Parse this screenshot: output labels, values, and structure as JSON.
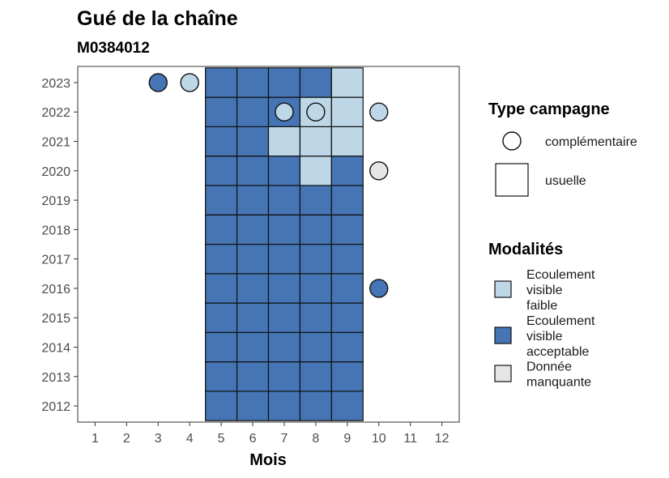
{
  "chart_data": {
    "type": "heatmap",
    "title": "Gué de la chaîne",
    "subtitle": "M0384012",
    "xlabel": "Mois",
    "ylabel": "",
    "x_ticks": [
      "1",
      "2",
      "3",
      "4",
      "5",
      "6",
      "7",
      "8",
      "9",
      "10",
      "11",
      "12"
    ],
    "y_ticks": [
      "2012",
      "2013",
      "2014",
      "2015",
      "2016",
      "2017",
      "2018",
      "2019",
      "2020",
      "2021",
      "2022",
      "2023"
    ],
    "grid": false,
    "legend_position": "right",
    "colors": {
      "faible": "#bdd7e7",
      "acceptable": "#4575b4",
      "manquante": "#e5e5e5"
    },
    "legend_shape": {
      "title": "Type campagne",
      "items": [
        {
          "label": "complémentaire",
          "shape": "circle"
        },
        {
          "label": "usuelle",
          "shape": "square"
        }
      ]
    },
    "legend_fill": {
      "title": "Modalités",
      "items": [
        {
          "label": "Ecoulement visible faible",
          "lines": [
            "Ecoulement",
            "visible",
            "faible"
          ],
          "color_key": "faible"
        },
        {
          "label": "Ecoulement visible acceptable",
          "lines": [
            "Ecoulement",
            "visible",
            "acceptable"
          ],
          "color_key": "acceptable"
        },
        {
          "label": "Donnée manquante",
          "lines": [
            "Donnée",
            "manquante"
          ],
          "color_key": "manquante"
        }
      ]
    },
    "usuelle": [
      {
        "year": 2012,
        "month": 5,
        "mod": "acceptable"
      },
      {
        "year": 2012,
        "month": 6,
        "mod": "acceptable"
      },
      {
        "year": 2012,
        "month": 7,
        "mod": "acceptable"
      },
      {
        "year": 2012,
        "month": 8,
        "mod": "acceptable"
      },
      {
        "year": 2012,
        "month": 9,
        "mod": "acceptable"
      },
      {
        "year": 2013,
        "month": 5,
        "mod": "acceptable"
      },
      {
        "year": 2013,
        "month": 6,
        "mod": "acceptable"
      },
      {
        "year": 2013,
        "month": 7,
        "mod": "acceptable"
      },
      {
        "year": 2013,
        "month": 8,
        "mod": "acceptable"
      },
      {
        "year": 2013,
        "month": 9,
        "mod": "acceptable"
      },
      {
        "year": 2014,
        "month": 5,
        "mod": "acceptable"
      },
      {
        "year": 2014,
        "month": 6,
        "mod": "acceptable"
      },
      {
        "year": 2014,
        "month": 7,
        "mod": "acceptable"
      },
      {
        "year": 2014,
        "month": 8,
        "mod": "acceptable"
      },
      {
        "year": 2014,
        "month": 9,
        "mod": "acceptable"
      },
      {
        "year": 2015,
        "month": 5,
        "mod": "acceptable"
      },
      {
        "year": 2015,
        "month": 6,
        "mod": "acceptable"
      },
      {
        "year": 2015,
        "month": 7,
        "mod": "acceptable"
      },
      {
        "year": 2015,
        "month": 8,
        "mod": "acceptable"
      },
      {
        "year": 2015,
        "month": 9,
        "mod": "acceptable"
      },
      {
        "year": 2016,
        "month": 5,
        "mod": "acceptable"
      },
      {
        "year": 2016,
        "month": 6,
        "mod": "acceptable"
      },
      {
        "year": 2016,
        "month": 7,
        "mod": "acceptable"
      },
      {
        "year": 2016,
        "month": 8,
        "mod": "acceptable"
      },
      {
        "year": 2016,
        "month": 9,
        "mod": "acceptable"
      },
      {
        "year": 2017,
        "month": 5,
        "mod": "acceptable"
      },
      {
        "year": 2017,
        "month": 6,
        "mod": "acceptable"
      },
      {
        "year": 2017,
        "month": 7,
        "mod": "acceptable"
      },
      {
        "year": 2017,
        "month": 8,
        "mod": "acceptable"
      },
      {
        "year": 2017,
        "month": 9,
        "mod": "acceptable"
      },
      {
        "year": 2018,
        "month": 5,
        "mod": "acceptable"
      },
      {
        "year": 2018,
        "month": 6,
        "mod": "acceptable"
      },
      {
        "year": 2018,
        "month": 7,
        "mod": "acceptable"
      },
      {
        "year": 2018,
        "month": 8,
        "mod": "acceptable"
      },
      {
        "year": 2018,
        "month": 9,
        "mod": "acceptable"
      },
      {
        "year": 2019,
        "month": 5,
        "mod": "acceptable"
      },
      {
        "year": 2019,
        "month": 6,
        "mod": "acceptable"
      },
      {
        "year": 2019,
        "month": 7,
        "mod": "acceptable"
      },
      {
        "year": 2019,
        "month": 8,
        "mod": "acceptable"
      },
      {
        "year": 2019,
        "month": 9,
        "mod": "acceptable"
      },
      {
        "year": 2020,
        "month": 5,
        "mod": "acceptable"
      },
      {
        "year": 2020,
        "month": 6,
        "mod": "acceptable"
      },
      {
        "year": 2020,
        "month": 7,
        "mod": "acceptable"
      },
      {
        "year": 2020,
        "month": 8,
        "mod": "faible"
      },
      {
        "year": 2020,
        "month": 9,
        "mod": "acceptable"
      },
      {
        "year": 2021,
        "month": 5,
        "mod": "acceptable"
      },
      {
        "year": 2021,
        "month": 6,
        "mod": "acceptable"
      },
      {
        "year": 2021,
        "month": 7,
        "mod": "faible"
      },
      {
        "year": 2021,
        "month": 8,
        "mod": "faible"
      },
      {
        "year": 2021,
        "month": 9,
        "mod": "faible"
      },
      {
        "year": 2022,
        "month": 5,
        "mod": "acceptable"
      },
      {
        "year": 2022,
        "month": 6,
        "mod": "acceptable"
      },
      {
        "year": 2022,
        "month": 7,
        "mod": "acceptable"
      },
      {
        "year": 2022,
        "month": 8,
        "mod": "faible"
      },
      {
        "year": 2022,
        "month": 9,
        "mod": "faible"
      },
      {
        "year": 2023,
        "month": 5,
        "mod": "acceptable"
      },
      {
        "year": 2023,
        "month": 6,
        "mod": "acceptable"
      },
      {
        "year": 2023,
        "month": 7,
        "mod": "acceptable"
      },
      {
        "year": 2023,
        "month": 8,
        "mod": "acceptable"
      },
      {
        "year": 2023,
        "month": 9,
        "mod": "faible"
      }
    ],
    "complementaire": [
      {
        "year": 2023,
        "month": 3,
        "mod": "acceptable"
      },
      {
        "year": 2023,
        "month": 4,
        "mod": "faible"
      },
      {
        "year": 2022,
        "month": 7,
        "mod": "faible"
      },
      {
        "year": 2022,
        "month": 8,
        "mod": "faible"
      },
      {
        "year": 2022,
        "month": 10,
        "mod": "faible"
      },
      {
        "year": 2020,
        "month": 10,
        "mod": "manquante"
      },
      {
        "year": 2016,
        "month": 10,
        "mod": "acceptable"
      }
    ]
  }
}
